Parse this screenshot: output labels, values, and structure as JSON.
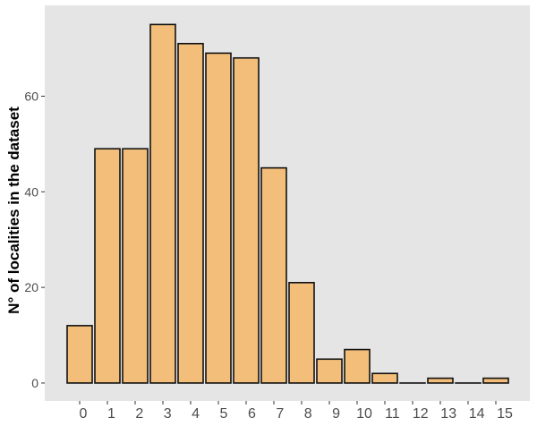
{
  "chart_data": {
    "type": "bar",
    "title": "",
    "xlabel": "",
    "ylabel": "N° of localities in the dataset",
    "categories": [
      "0",
      "1",
      "2",
      "3",
      "4",
      "5",
      "6",
      "7",
      "8",
      "9",
      "10",
      "11",
      "12",
      "13",
      "14",
      "15"
    ],
    "values": [
      12,
      49,
      49,
      75,
      71,
      69,
      68,
      45,
      21,
      5,
      7,
      2,
      0,
      1,
      0,
      1
    ],
    "yticks": [
      0,
      20,
      40,
      60
    ],
    "ylim": [
      -3.75,
      79
    ],
    "grid": false,
    "legend": "none",
    "colors": {
      "panel": "#e5e5e5",
      "bar_fill": "#f2be7a",
      "bar_stroke": "#111111",
      "tick_text": "#4d4d4d",
      "axis_title": "#000000"
    }
  }
}
